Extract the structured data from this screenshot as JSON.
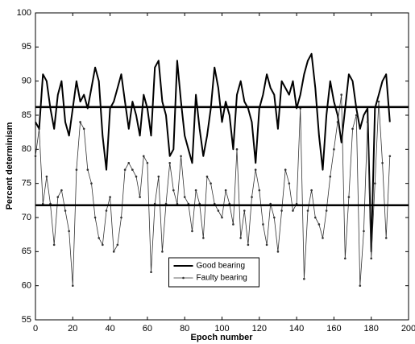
{
  "chart_data": {
    "type": "line",
    "xlabel": "Epoch number",
    "ylabel": "Percent determinism",
    "x": [
      0,
      2,
      4,
      6,
      8,
      10,
      12,
      14,
      16,
      18,
      20,
      22,
      24,
      26,
      28,
      30,
      32,
      34,
      36,
      38,
      40,
      42,
      44,
      46,
      48,
      50,
      52,
      54,
      56,
      58,
      60,
      62,
      64,
      66,
      68,
      70,
      72,
      74,
      76,
      78,
      80,
      82,
      84,
      86,
      88,
      90,
      92,
      94,
      96,
      98,
      100,
      102,
      104,
      106,
      108,
      110,
      112,
      114,
      116,
      118,
      120,
      122,
      124,
      126,
      128,
      130,
      132,
      134,
      136,
      138,
      140,
      142,
      144,
      146,
      148,
      150,
      152,
      154,
      156,
      158,
      160,
      162,
      164,
      166,
      168,
      170,
      172,
      174,
      176,
      178,
      180,
      182,
      184,
      186,
      188,
      190
    ],
    "series": [
      {
        "name": "Good bearing",
        "color": "#000000",
        "line_width": 2,
        "marker": false,
        "values": [
          84,
          83,
          91,
          90,
          86,
          83,
          88,
          90,
          84,
          82,
          86,
          90,
          87,
          88,
          86,
          89,
          92,
          90,
          82,
          77,
          86,
          87,
          89,
          91,
          87,
          83,
          87,
          85,
          82,
          88,
          86,
          82,
          92,
          93,
          87,
          85,
          79,
          80,
          93,
          87,
          82,
          80,
          78,
          88,
          83,
          79,
          82,
          86,
          92,
          89,
          84,
          87,
          85,
          80,
          88,
          90,
          87,
          86,
          84,
          78,
          86,
          88,
          91,
          89,
          88,
          83,
          90,
          89,
          88,
          90,
          86,
          88,
          91,
          93,
          94,
          89,
          82,
          77,
          85,
          90,
          87,
          85,
          81,
          86,
          91,
          90,
          86,
          83,
          85,
          86,
          65,
          86,
          88,
          90,
          91,
          84
        ]
      },
      {
        "name": "Faulty bearing",
        "color": "#333333",
        "line_width": 0.8,
        "marker": true,
        "values": [
          79,
          83,
          72,
          76,
          72,
          66,
          73,
          74,
          71,
          68,
          60,
          77,
          84,
          83,
          77,
          75,
          70,
          67,
          66,
          71,
          73,
          65,
          66,
          70,
          77,
          78,
          77,
          76,
          73,
          79,
          78,
          62,
          72,
          76,
          65,
          72,
          78,
          74,
          72,
          79,
          73,
          72,
          68,
          74,
          72,
          67,
          76,
          75,
          72,
          71,
          70,
          74,
          72,
          69,
          80,
          67,
          71,
          66,
          73,
          77,
          74,
          69,
          66,
          72,
          70,
          65,
          71,
          77,
          75,
          71,
          72,
          86,
          61,
          71,
          74,
          70,
          69,
          67,
          71,
          76,
          80,
          84,
          88,
          64,
          73,
          83,
          85,
          60,
          68,
          84,
          64,
          75,
          87,
          78,
          67,
          79
        ]
      }
    ],
    "reference_lines": [
      86.2,
      71.8
    ],
    "xlim": [
      0,
      200
    ],
    "ylim": [
      55,
      100
    ],
    "xticks": [
      0,
      20,
      40,
      60,
      80,
      100,
      120,
      140,
      160,
      180,
      200
    ],
    "yticks": [
      55,
      60,
      65,
      70,
      75,
      80,
      85,
      90,
      95,
      100
    ],
    "legend": "lower center"
  }
}
